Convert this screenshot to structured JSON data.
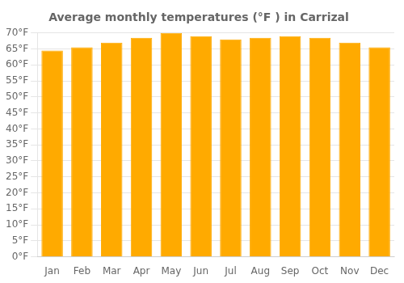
{
  "chart_data": {
    "type": "bar",
    "title": "Average monthly temperatures (°F ) in Carrizal",
    "categories": [
      "Jan",
      "Feb",
      "Mar",
      "Apr",
      "May",
      "Jun",
      "Jul",
      "Aug",
      "Sep",
      "Oct",
      "Nov",
      "Dec"
    ],
    "values": [
      64.5,
      65.5,
      67.0,
      68.5,
      70.0,
      69.0,
      68.0,
      68.5,
      69.0,
      68.5,
      67.0,
      65.5
    ],
    "color": "#FFAA00",
    "ylim": [
      0,
      70
    ],
    "yticks": [
      {
        "value": 0,
        "label": "0°F"
      },
      {
        "value": 5,
        "label": "5°F"
      },
      {
        "value": 10,
        "label": "10°F"
      },
      {
        "value": 15,
        "label": "15°F"
      },
      {
        "value": 20,
        "label": "20°F"
      },
      {
        "value": 25,
        "label": "25°F"
      },
      {
        "value": 30,
        "label": "30°F"
      },
      {
        "value": 35,
        "label": "35°F"
      },
      {
        "value": 40,
        "label": "40°F"
      },
      {
        "value": 45,
        "label": "45°F"
      },
      {
        "value": 50,
        "label": "50°F"
      },
      {
        "value": 55,
        "label": "55°F"
      },
      {
        "value": 60,
        "label": "60°F"
      },
      {
        "value": 65,
        "label": "65°F"
      },
      {
        "value": 70,
        "label": "70°F"
      }
    ],
    "grid": true
  }
}
